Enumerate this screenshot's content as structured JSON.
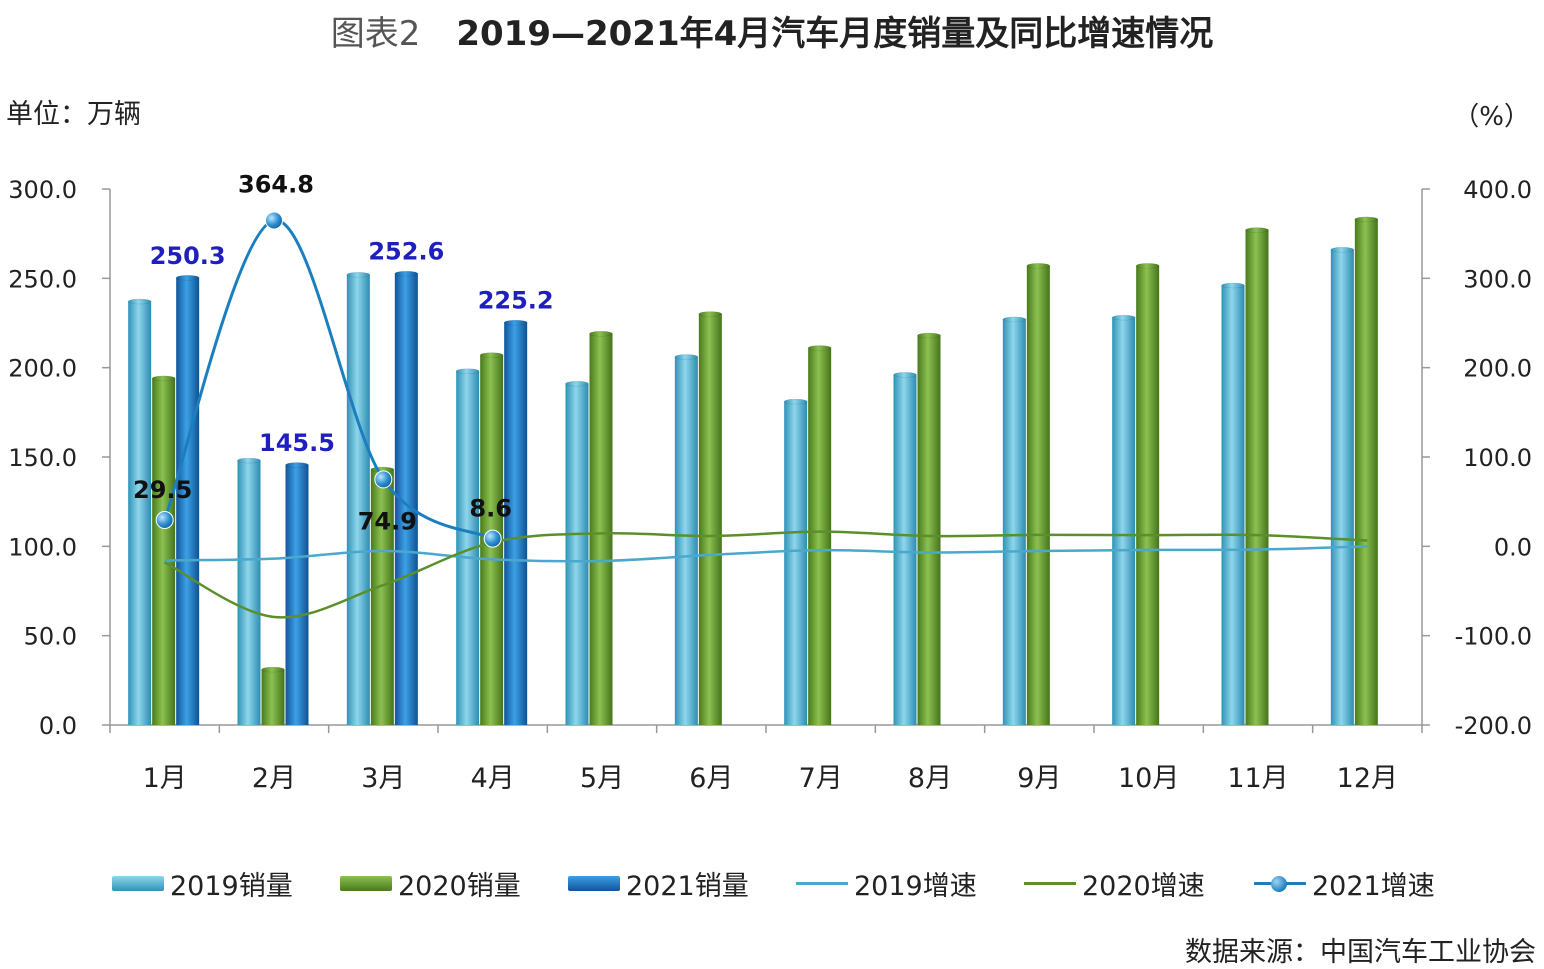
{
  "title": {
    "fig_label": "图表2",
    "text": "2019—2021年4月汽车月度销量及同比增速情况"
  },
  "units": {
    "left": "单位：万辆",
    "right": "（%）"
  },
  "source": "数据来源：中国汽车工业协会",
  "colors": {
    "sales_2019": "#4fb8d8",
    "sales_2020": "#6a9d2e",
    "sales_2021": "#1b77c4",
    "growth_2019": "#4aa8cc",
    "growth_2020": "#5a8f2a",
    "growth_2021": "#1b7fbf"
  },
  "chart_data": {
    "type": "bar",
    "categories": [
      "1月",
      "2月",
      "3月",
      "4月",
      "5月",
      "6月",
      "7月",
      "8月",
      "9月",
      "10月",
      "11月",
      "12月"
    ],
    "y_left": {
      "ylim": [
        0,
        300
      ],
      "ticks": [
        "0.0",
        "50.0",
        "100.0",
        "150.0",
        "200.0",
        "250.0",
        "300.0"
      ]
    },
    "y_right": {
      "ylim": [
        -200,
        400
      ],
      "ticks": [
        "-200.0",
        "-100.0",
        "0.0",
        "100.0",
        "200.0",
        "300.0",
        "400.0"
      ]
    },
    "series": [
      {
        "name": "2019销量",
        "kind": "bar",
        "axis": "left",
        "values": [
          237,
          148,
          252,
          198,
          191,
          206,
          181,
          196,
          227,
          228,
          246,
          266
        ]
      },
      {
        "name": "2020销量",
        "kind": "bar",
        "axis": "left",
        "values": [
          194,
          31,
          143,
          207,
          219,
          230,
          211,
          218,
          257,
          257,
          277,
          283
        ]
      },
      {
        "name": "2021销量",
        "kind": "bar",
        "axis": "left",
        "values": [
          250.3,
          145.5,
          252.6,
          225.2,
          null,
          null,
          null,
          null,
          null,
          null,
          null,
          null
        ],
        "labels": [
          "250.3",
          "145.5",
          "252.6",
          "225.2"
        ]
      },
      {
        "name": "2019增速",
        "kind": "line",
        "axis": "right",
        "values": [
          -15.8,
          -13.8,
          -5.2,
          -14.6,
          -16.4,
          -9.6,
          -4.3,
          -6.9,
          -5.2,
          -4.0,
          -3.6,
          0.1
        ]
      },
      {
        "name": "2020增速",
        "kind": "line",
        "axis": "right",
        "values": [
          -18.0,
          -79.1,
          -43.3,
          4.4,
          14.5,
          11.6,
          16.4,
          11.6,
          12.8,
          12.5,
          12.6,
          6.4
        ]
      },
      {
        "name": "2021增速",
        "kind": "line",
        "axis": "right",
        "values": [
          29.5,
          364.8,
          74.9,
          8.6,
          null,
          null,
          null,
          null,
          null,
          null,
          null,
          null
        ],
        "labels": [
          "29.5",
          "364.8",
          "74.9",
          "8.6"
        ]
      }
    ],
    "legend": [
      "2019销量",
      "2020销量",
      "2021销量",
      "2019增速",
      "2020增速",
      "2021增速"
    ],
    "legend_placement": "bottom",
    "grid": false
  }
}
